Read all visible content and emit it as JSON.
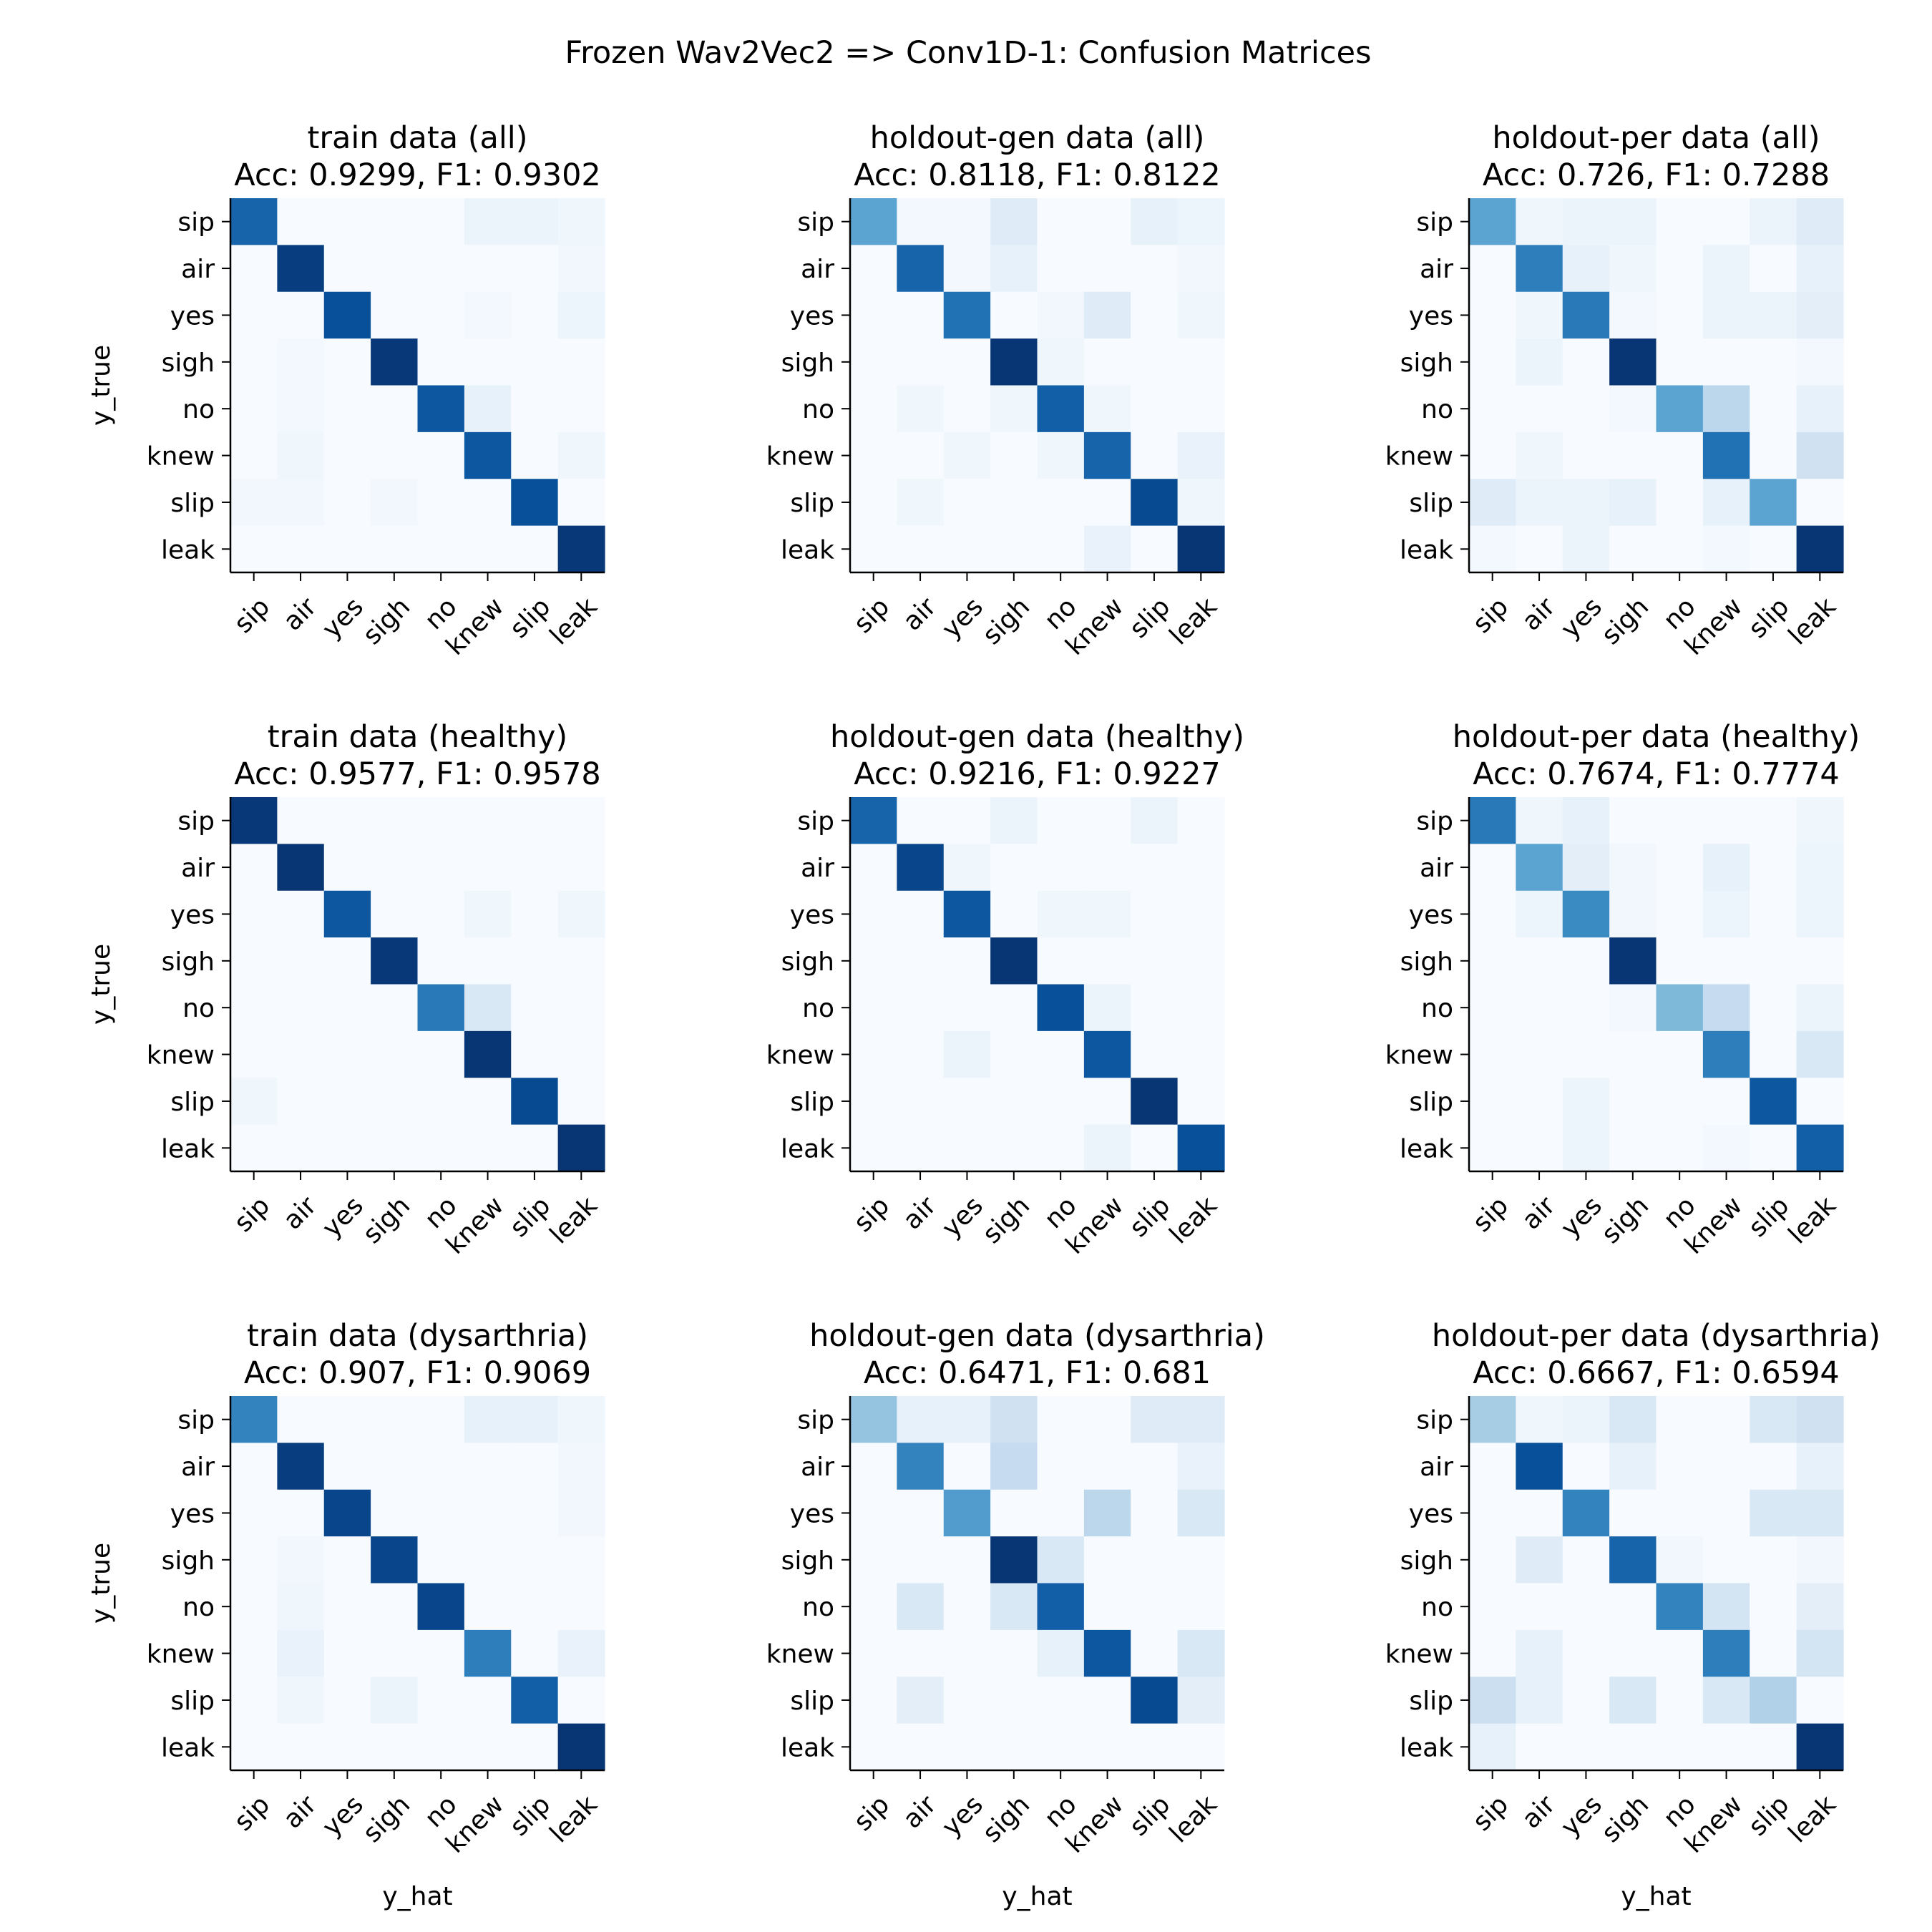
{
  "figure_title": "Frozen Wav2Vec2 => Conv1D-1: Confusion Matrices",
  "x_label": "y_hat",
  "y_label": "y_true",
  "colormap": "Blues",
  "chart_data": [
    {
      "type": "heatmap",
      "title": "train data (all)",
      "subtitle": "Acc: 0.9299, F1: 0.9302",
      "categories": [
        "sip",
        "air",
        "yes",
        "sigh",
        "no",
        "knew",
        "slip",
        "leak"
      ],
      "matrix": [
        [
          0.8,
          0.0,
          0.0,
          0.0,
          0.0,
          0.06,
          0.06,
          0.04
        ],
        [
          0.0,
          0.95,
          0.0,
          0.0,
          0.0,
          0.0,
          0.0,
          0.03
        ],
        [
          0.0,
          0.0,
          0.88,
          0.0,
          0.0,
          0.02,
          0.0,
          0.05
        ],
        [
          0.0,
          0.02,
          0.0,
          0.97,
          0.0,
          0.0,
          0.0,
          0.0
        ],
        [
          0.0,
          0.02,
          0.0,
          0.0,
          0.85,
          0.08,
          0.0,
          0.0
        ],
        [
          0.0,
          0.04,
          0.0,
          0.0,
          0.0,
          0.85,
          0.0,
          0.04
        ],
        [
          0.03,
          0.03,
          0.0,
          0.03,
          0.0,
          0.0,
          0.88,
          0.0
        ],
        [
          0.0,
          0.0,
          0.0,
          0.0,
          0.0,
          0.0,
          0.0,
          0.97
        ]
      ]
    },
    {
      "type": "heatmap",
      "title": "holdout-gen data (all)",
      "subtitle": "Acc: 0.8118, F1: 0.8122",
      "categories": [
        "sip",
        "air",
        "yes",
        "sigh",
        "no",
        "knew",
        "slip",
        "leak"
      ],
      "matrix": [
        [
          0.55,
          0.02,
          0.02,
          0.12,
          0.0,
          0.0,
          0.08,
          0.05
        ],
        [
          0.0,
          0.8,
          0.02,
          0.08,
          0.0,
          0.0,
          0.0,
          0.03
        ],
        [
          0.0,
          0.0,
          0.75,
          0.0,
          0.03,
          0.12,
          0.0,
          0.04
        ],
        [
          0.0,
          0.0,
          0.0,
          0.98,
          0.04,
          0.0,
          0.0,
          0.0
        ],
        [
          0.0,
          0.04,
          0.0,
          0.04,
          0.82,
          0.04,
          0.0,
          0.0
        ],
        [
          0.0,
          0.0,
          0.04,
          0.0,
          0.04,
          0.8,
          0.0,
          0.07
        ],
        [
          0.0,
          0.04,
          0.0,
          0.0,
          0.0,
          0.0,
          0.9,
          0.04
        ],
        [
          0.0,
          0.0,
          0.0,
          0.0,
          0.0,
          0.07,
          0.0,
          0.98
        ]
      ]
    },
    {
      "type": "heatmap",
      "title": "holdout-per data (all)",
      "subtitle": "Acc: 0.726, F1: 0.7288",
      "categories": [
        "sip",
        "air",
        "yes",
        "sigh",
        "no",
        "knew",
        "slip",
        "leak"
      ],
      "matrix": [
        [
          0.55,
          0.04,
          0.06,
          0.06,
          0.0,
          0.0,
          0.06,
          0.12
        ],
        [
          0.0,
          0.7,
          0.08,
          0.04,
          0.0,
          0.06,
          0.0,
          0.08
        ],
        [
          0.0,
          0.04,
          0.72,
          0.02,
          0.0,
          0.06,
          0.06,
          0.1
        ],
        [
          0.0,
          0.06,
          0.0,
          0.98,
          0.0,
          0.0,
          0.0,
          0.02
        ],
        [
          0.0,
          0.0,
          0.0,
          0.02,
          0.55,
          0.28,
          0.0,
          0.08
        ],
        [
          0.0,
          0.04,
          0.0,
          0.0,
          0.0,
          0.75,
          0.0,
          0.2
        ],
        [
          0.12,
          0.06,
          0.06,
          0.08,
          0.0,
          0.08,
          0.55,
          0.0
        ],
        [
          0.02,
          0.0,
          0.06,
          0.0,
          0.0,
          0.02,
          0.0,
          0.98
        ]
      ]
    },
    {
      "type": "heatmap",
      "title": "train data (healthy)",
      "subtitle": "Acc: 0.9577, F1: 0.9578",
      "categories": [
        "sip",
        "air",
        "yes",
        "sigh",
        "no",
        "knew",
        "slip",
        "leak"
      ],
      "matrix": [
        [
          0.97,
          0.0,
          0.0,
          0.0,
          0.0,
          0.0,
          0.0,
          0.0
        ],
        [
          0.0,
          0.98,
          0.0,
          0.0,
          0.0,
          0.0,
          0.0,
          0.0
        ],
        [
          0.0,
          0.0,
          0.85,
          0.0,
          0.0,
          0.04,
          0.0,
          0.04
        ],
        [
          0.0,
          0.0,
          0.0,
          0.97,
          0.0,
          0.0,
          0.0,
          0.0
        ],
        [
          0.0,
          0.0,
          0.0,
          0.0,
          0.72,
          0.15,
          0.0,
          0.0
        ],
        [
          0.0,
          0.0,
          0.0,
          0.0,
          0.0,
          0.98,
          0.0,
          0.0
        ],
        [
          0.04,
          0.0,
          0.0,
          0.0,
          0.0,
          0.0,
          0.9,
          0.0
        ],
        [
          0.0,
          0.0,
          0.0,
          0.0,
          0.0,
          0.0,
          0.0,
          0.98
        ]
      ]
    },
    {
      "type": "heatmap",
      "title": "holdout-gen data (healthy)",
      "subtitle": "Acc: 0.9216, F1: 0.9227",
      "categories": [
        "sip",
        "air",
        "yes",
        "sigh",
        "no",
        "knew",
        "slip",
        "leak"
      ],
      "matrix": [
        [
          0.8,
          0.0,
          0.0,
          0.06,
          0.0,
          0.0,
          0.06,
          0.0
        ],
        [
          0.0,
          0.92,
          0.04,
          0.0,
          0.0,
          0.0,
          0.0,
          0.0
        ],
        [
          0.0,
          0.0,
          0.85,
          0.0,
          0.04,
          0.04,
          0.0,
          0.0
        ],
        [
          0.0,
          0.0,
          0.0,
          0.98,
          0.0,
          0.0,
          0.0,
          0.0
        ],
        [
          0.0,
          0.0,
          0.0,
          0.0,
          0.88,
          0.06,
          0.0,
          0.0
        ],
        [
          0.0,
          0.0,
          0.06,
          0.0,
          0.0,
          0.85,
          0.0,
          0.0
        ],
        [
          0.0,
          0.0,
          0.0,
          0.0,
          0.0,
          0.0,
          0.98,
          0.0
        ],
        [
          0.0,
          0.0,
          0.0,
          0.0,
          0.0,
          0.06,
          0.0,
          0.88
        ]
      ]
    },
    {
      "type": "heatmap",
      "title": "holdout-per data (healthy)",
      "subtitle": "Acc: 0.7674, F1: 0.7774",
      "categories": [
        "sip",
        "air",
        "yes",
        "sigh",
        "no",
        "knew",
        "slip",
        "leak"
      ],
      "matrix": [
        [
          0.72,
          0.04,
          0.08,
          0.0,
          0.0,
          0.0,
          0.0,
          0.04
        ],
        [
          0.0,
          0.55,
          0.1,
          0.03,
          0.0,
          0.08,
          0.0,
          0.05
        ],
        [
          0.0,
          0.05,
          0.65,
          0.03,
          0.0,
          0.05,
          0.0,
          0.05
        ],
        [
          0.0,
          0.0,
          0.0,
          0.98,
          0.0,
          0.0,
          0.0,
          0.0
        ],
        [
          0.0,
          0.0,
          0.0,
          0.02,
          0.45,
          0.25,
          0.0,
          0.06
        ],
        [
          0.0,
          0.0,
          0.0,
          0.0,
          0.0,
          0.7,
          0.0,
          0.15
        ],
        [
          0.0,
          0.0,
          0.05,
          0.0,
          0.0,
          0.0,
          0.85,
          0.0
        ],
        [
          0.0,
          0.0,
          0.05,
          0.0,
          0.0,
          0.02,
          0.0,
          0.82
        ]
      ]
    },
    {
      "type": "heatmap",
      "title": "train data (dysarthria)",
      "subtitle": "Acc: 0.907, F1: 0.9069",
      "categories": [
        "sip",
        "air",
        "yes",
        "sigh",
        "no",
        "knew",
        "slip",
        "leak"
      ],
      "matrix": [
        [
          0.68,
          0.0,
          0.0,
          0.0,
          0.0,
          0.08,
          0.08,
          0.04
        ],
        [
          0.0,
          0.95,
          0.0,
          0.0,
          0.0,
          0.0,
          0.0,
          0.03
        ],
        [
          0.0,
          0.0,
          0.92,
          0.0,
          0.0,
          0.0,
          0.0,
          0.03
        ],
        [
          0.0,
          0.03,
          0.0,
          0.92,
          0.0,
          0.0,
          0.0,
          0.0
        ],
        [
          0.0,
          0.04,
          0.0,
          0.0,
          0.92,
          0.0,
          0.0,
          0.0
        ],
        [
          0.0,
          0.07,
          0.0,
          0.0,
          0.0,
          0.7,
          0.0,
          0.07
        ],
        [
          0.0,
          0.04,
          0.0,
          0.06,
          0.0,
          0.0,
          0.82,
          0.0
        ],
        [
          0.0,
          0.0,
          0.0,
          0.0,
          0.0,
          0.0,
          0.0,
          0.98
        ]
      ]
    },
    {
      "type": "heatmap",
      "title": "holdout-gen data (dysarthria)",
      "subtitle": "Acc: 0.6471, F1: 0.681",
      "categories": [
        "sip",
        "air",
        "yes",
        "sigh",
        "no",
        "knew",
        "slip",
        "leak"
      ],
      "matrix": [
        [
          0.4,
          0.08,
          0.08,
          0.2,
          0.0,
          0.0,
          0.12,
          0.12
        ],
        [
          0.0,
          0.68,
          0.0,
          0.25,
          0.0,
          0.0,
          0.0,
          0.07
        ],
        [
          0.0,
          0.0,
          0.58,
          0.0,
          0.0,
          0.28,
          0.0,
          0.15
        ],
        [
          0.0,
          0.0,
          0.0,
          0.98,
          0.15,
          0.0,
          0.0,
          0.0
        ],
        [
          0.0,
          0.15,
          0.0,
          0.15,
          0.82,
          0.0,
          0.0,
          0.0
        ],
        [
          0.0,
          0.0,
          0.0,
          0.0,
          0.08,
          0.85,
          0.0,
          0.15
        ],
        [
          0.0,
          0.1,
          0.0,
          0.0,
          0.0,
          0.0,
          0.9,
          0.1
        ],
        [
          0.0,
          0.0,
          0.0,
          0.0,
          0.0,
          0.0,
          0.0,
          0.0
        ]
      ]
    },
    {
      "type": "heatmap",
      "title": "holdout-per data (dysarthria)",
      "subtitle": "Acc: 0.6667, F1: 0.6594",
      "categories": [
        "sip",
        "air",
        "yes",
        "sigh",
        "no",
        "knew",
        "slip",
        "leak"
      ],
      "matrix": [
        [
          0.35,
          0.04,
          0.06,
          0.15,
          0.0,
          0.0,
          0.15,
          0.2
        ],
        [
          0.0,
          0.88,
          0.0,
          0.08,
          0.0,
          0.0,
          0.0,
          0.08
        ],
        [
          0.0,
          0.0,
          0.68,
          0.0,
          0.0,
          0.0,
          0.15,
          0.15
        ],
        [
          0.0,
          0.12,
          0.0,
          0.8,
          0.03,
          0.0,
          0.0,
          0.03
        ],
        [
          0.0,
          0.0,
          0.0,
          0.0,
          0.68,
          0.18,
          0.0,
          0.1
        ],
        [
          0.0,
          0.08,
          0.0,
          0.0,
          0.0,
          0.7,
          0.0,
          0.18
        ],
        [
          0.22,
          0.08,
          0.0,
          0.15,
          0.0,
          0.15,
          0.32,
          0.0
        ],
        [
          0.08,
          0.0,
          0.0,
          0.0,
          0.0,
          0.0,
          0.0,
          0.98
        ]
      ]
    }
  ]
}
